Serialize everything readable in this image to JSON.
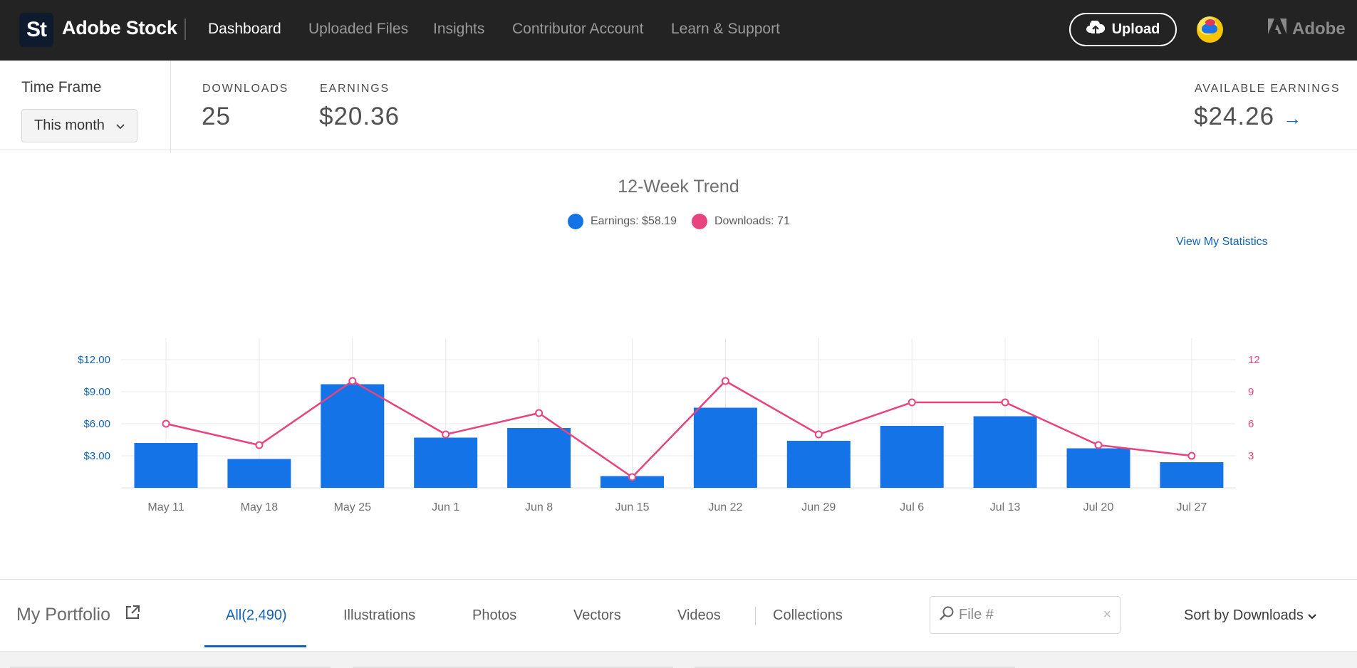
{
  "header": {
    "logo_text": "St",
    "brand": "Adobe Stock",
    "nav": [
      {
        "label": "Dashboard",
        "active": true
      },
      {
        "label": "Uploaded Files",
        "active": false
      },
      {
        "label": "Insights",
        "active": false
      },
      {
        "label": "Contributor Account",
        "active": false
      },
      {
        "label": "Learn & Support",
        "active": false
      }
    ],
    "upload_label": "Upload",
    "adobe_label": "Adobe"
  },
  "summary": {
    "timeframe_label": "Time Frame",
    "timeframe_value": "This month",
    "downloads_label": "DOWNLOADS",
    "downloads_value": "25",
    "earnings_label": "EARNINGS",
    "earnings_value": "$20.36",
    "available_label": "AVAILABLE EARNINGS",
    "available_value": "$24.26",
    "arrow": "→"
  },
  "chart_data": {
    "type": "bar",
    "title": "12-Week Trend",
    "categories": [
      "May 11",
      "May 18",
      "May 25",
      "Jun 1",
      "Jun 8",
      "Jun 15",
      "Jun 22",
      "Jun 29",
      "Jul 6",
      "Jul 13",
      "Jul 20",
      "Jul 27"
    ],
    "series": [
      {
        "name": "Earnings",
        "legend": "Earnings: $58.19",
        "type": "bar",
        "axis": "left",
        "color": "#1473e6",
        "values": [
          4.2,
          2.7,
          9.7,
          4.7,
          5.6,
          1.1,
          7.5,
          4.4,
          5.8,
          6.7,
          3.7,
          2.4
        ]
      },
      {
        "name": "Downloads",
        "legend": "Downloads: 71",
        "type": "line",
        "axis": "right",
        "color": "#e8427f",
        "values": [
          6,
          4,
          10,
          5,
          7,
          1,
          10,
          5,
          8,
          8,
          4,
          3
        ]
      }
    ],
    "y_left": {
      "ticks": [
        "$3.00",
        "$6.00",
        "$9.00",
        "$12.00"
      ],
      "tick_values": [
        3,
        6,
        9,
        12
      ],
      "ylim": [
        0,
        12
      ],
      "color": "#1262b8"
    },
    "y_right": {
      "ticks": [
        "3",
        "6",
        "9",
        "12"
      ],
      "tick_values": [
        3,
        6,
        9,
        12
      ],
      "ylim": [
        0,
        12
      ],
      "color": "#e8427f"
    },
    "grid": true,
    "legend_position": "top-center"
  },
  "view_stats_label": "View My Statistics",
  "portfolio": {
    "title": "My Portfolio",
    "tabs": [
      {
        "label": "All(2,490)",
        "active": true
      },
      {
        "label": "Illustrations",
        "active": false
      },
      {
        "label": "Photos",
        "active": false
      },
      {
        "label": "Vectors",
        "active": false
      },
      {
        "label": "Videos",
        "active": false
      },
      {
        "label": "Collections",
        "active": false
      }
    ],
    "search_placeholder": "File #",
    "clear": "×",
    "sort_label": "Sort by Downloads"
  },
  "icons": {
    "upload": "cloud-upload-icon",
    "portfolio_link": "external-link-icon",
    "search": "search-icon",
    "chevron": "chevron-down-icon"
  }
}
